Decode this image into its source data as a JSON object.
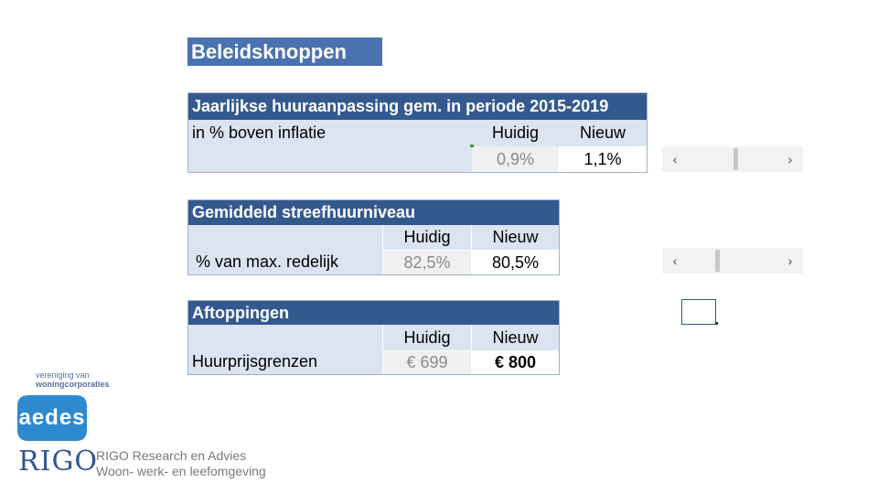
{
  "title": "Beleidsknoppen",
  "section1": {
    "header": "Jaarlijkse huuraanpassing gem. in periode 2015-2019",
    "row_label": "in % boven inflatie",
    "col_current": "Huidig",
    "col_new": "Nieuw",
    "current_value": "0,9%",
    "new_value": "1,1%"
  },
  "section2": {
    "header": "Gemiddeld streefhuurniveau",
    "row_label": "% van max. redelijk",
    "col_current": "Huidig",
    "col_new": "Nieuw",
    "current_value": "82,5%",
    "new_value": "80,5%"
  },
  "section3": {
    "header": "Aftoppingen",
    "row_label": "Huurprijsgrenzen",
    "col_current": "Huidig",
    "col_new": "Nieuw",
    "current_value": "€ 699",
    "new_value": "€ 800"
  },
  "scrollbar1": {
    "left_arrow": "‹",
    "right_arrow": "›",
    "position": 0.54
  },
  "scrollbar2": {
    "left_arrow": "‹",
    "right_arrow": "›",
    "position": 0.32
  },
  "logos": {
    "aedes_top_line1": "vereniging van",
    "aedes_top_line2": "woningcorporaties",
    "aedes_mark": "aedes",
    "rigo_mark": "RIGO",
    "rigo_line1": "RIGO Research en Advies",
    "rigo_line2": "Woon- werk- en leefomgeving"
  },
  "colors": {
    "header_blue": "#34598f",
    "title_blue": "#4a72b0",
    "light_blue": "#dbe4f0",
    "aedes_blue": "#2e8ad0"
  }
}
